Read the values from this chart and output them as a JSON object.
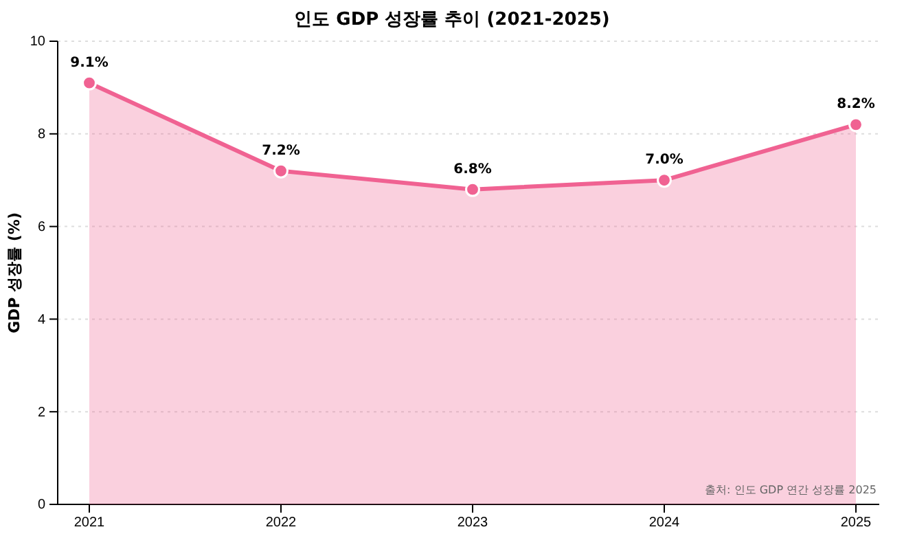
{
  "chart_data": {
    "type": "area",
    "title": "인도 GDP 성장률 추이 (2021-2025)",
    "ylabel": "GDP 성장률 (%)",
    "categories": [
      "2021",
      "2022",
      "2023",
      "2024",
      "2025"
    ],
    "series": [
      {
        "color": "#f06292",
        "values": [
          9.1,
          7.2,
          6.8,
          7.0,
          8.2
        ],
        "value_labels": [
          "9.1%",
          "7.2%",
          "6.8%",
          "7.0%",
          "8.2%"
        ]
      }
    ],
    "ylim": [
      0,
      10
    ],
    "yticks": [
      0,
      2,
      4,
      6,
      8,
      10
    ],
    "grid": "y",
    "marker": "circle",
    "line_style": "solid",
    "annotations": [
      "출처: 인도 GDP 연간 성장률 2025"
    ]
  }
}
